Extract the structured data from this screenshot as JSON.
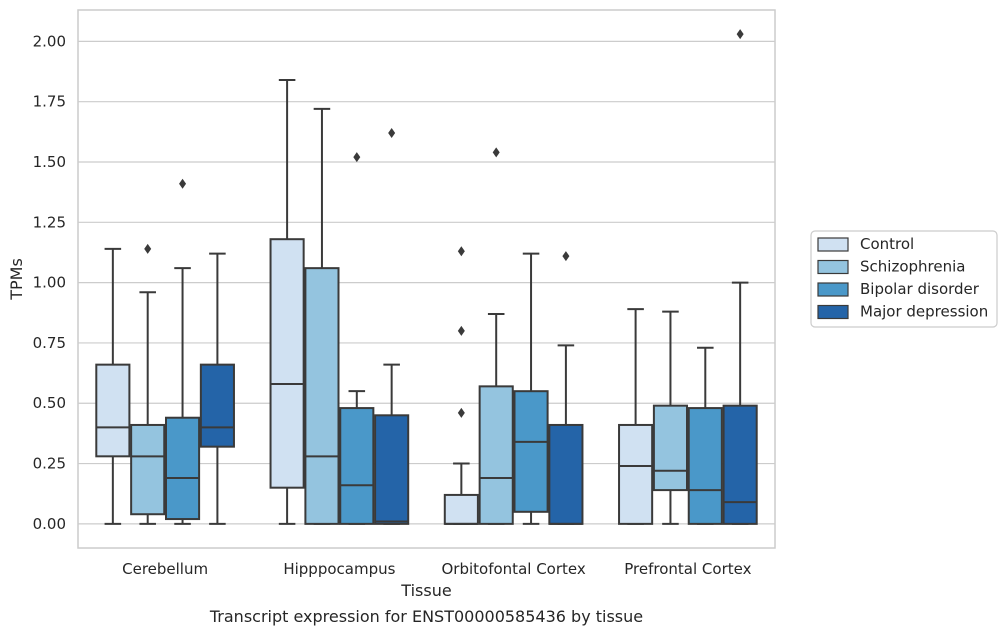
{
  "chart_data": {
    "type": "box",
    "title": "",
    "caption": "Transcript expression for ENST00000585436 by tissue",
    "xlabel": "Tissue",
    "ylabel": "TPMs",
    "ylim": [
      -0.1,
      2.13
    ],
    "yticks": [
      "0.00",
      "0.25",
      "0.50",
      "0.75",
      "1.00",
      "1.25",
      "1.50",
      "1.75",
      "2.00"
    ],
    "grid": true,
    "legend_position": "right",
    "categories": [
      "Cerebellum",
      "Hipppocampus",
      "Orbitofontal Cortex",
      "Prefrontal Cortex"
    ],
    "series": [
      {
        "name": "Control",
        "color": "#d0e1f2",
        "boxes": [
          {
            "whislo": 0.0,
            "q1": 0.28,
            "med": 0.4,
            "q3": 0.66,
            "whishi": 1.14,
            "fliers": []
          },
          {
            "whislo": 0.0,
            "q1": 0.15,
            "med": 0.58,
            "q3": 1.18,
            "whishi": 1.84,
            "fliers": []
          },
          {
            "whislo": 0.0,
            "q1": 0.0,
            "med": 0.0,
            "q3": 0.12,
            "whishi": 0.25,
            "fliers": [
              0.46,
              0.8,
              1.13
            ]
          },
          {
            "whislo": 0.0,
            "q1": 0.0,
            "med": 0.24,
            "q3": 0.41,
            "whishi": 0.89,
            "fliers": []
          }
        ]
      },
      {
        "name": "Schizophrenia",
        "color": "#94c4df",
        "boxes": [
          {
            "whislo": 0.0,
            "q1": 0.04,
            "med": 0.28,
            "q3": 0.41,
            "whishi": 0.96,
            "fliers": [
              1.14
            ]
          },
          {
            "whislo": 0.0,
            "q1": 0.0,
            "med": 0.28,
            "q3": 1.06,
            "whishi": 1.72,
            "fliers": []
          },
          {
            "whislo": 0.0,
            "q1": 0.0,
            "med": 0.19,
            "q3": 0.57,
            "whishi": 0.87,
            "fliers": [
              1.54
            ]
          },
          {
            "whislo": 0.0,
            "q1": 0.14,
            "med": 0.22,
            "q3": 0.49,
            "whishi": 0.88,
            "fliers": []
          }
        ]
      },
      {
        "name": "Bipolar disorder",
        "color": "#4a98c9",
        "boxes": [
          {
            "whislo": 0.0,
            "q1": 0.02,
            "med": 0.19,
            "q3": 0.44,
            "whishi": 1.06,
            "fliers": [
              1.41
            ]
          },
          {
            "whislo": 0.0,
            "q1": 0.0,
            "med": 0.16,
            "q3": 0.48,
            "whishi": 0.55,
            "fliers": [
              1.52
            ]
          },
          {
            "whislo": 0.0,
            "q1": 0.05,
            "med": 0.34,
            "q3": 0.55,
            "whishi": 1.12,
            "fliers": []
          },
          {
            "whislo": 0.0,
            "q1": 0.0,
            "med": 0.14,
            "q3": 0.48,
            "whishi": 0.73,
            "fliers": []
          }
        ]
      },
      {
        "name": "Major depression",
        "color": "#2464a8",
        "boxes": [
          {
            "whislo": 0.0,
            "q1": 0.32,
            "med": 0.4,
            "q3": 0.66,
            "whishi": 1.12,
            "fliers": []
          },
          {
            "whislo": 0.0,
            "q1": 0.0,
            "med": 0.01,
            "q3": 0.45,
            "whishi": 0.66,
            "fliers": [
              1.62
            ]
          },
          {
            "whislo": 0.0,
            "q1": 0.0,
            "med": 0.0,
            "q3": 0.41,
            "whishi": 0.74,
            "fliers": [
              1.11
            ]
          },
          {
            "whislo": 0.0,
            "q1": 0.0,
            "med": 0.09,
            "q3": 0.49,
            "whishi": 1.0,
            "fliers": [
              2.03
            ]
          }
        ]
      }
    ]
  }
}
